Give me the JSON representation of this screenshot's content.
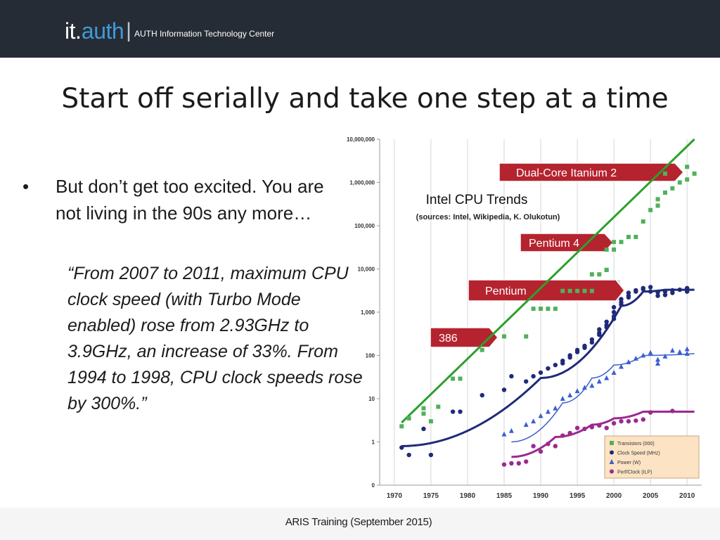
{
  "header": {
    "brand_it": "it",
    "brand_dot": ".",
    "brand_auth": "auth",
    "separator": "|",
    "subtitle": "AUTH Information Technology Center"
  },
  "slide": {
    "title": "Start off serially and take one step at a time",
    "bullet_symbol": "•",
    "bullet_text": "But don’t get too excited. You are not living in the 90s any more…",
    "quote": "“From 2007 to 2011, maximum CPU clock speed (with Turbo Mode enabled) rose from 2.93GHz to 3.9GHz, an increase of 33%. From 1994 to 1998, CPU clock speeds rose by 300%.”"
  },
  "footer": {
    "text": "ARIS Training (September 2015)"
  },
  "colors": {
    "header_bg": "#262c35",
    "brand_accent": "#3f9ad8",
    "transistors": "#52b05a",
    "trend_green": "#2ca02c",
    "clock": "#1f2a7a",
    "power": "#3a5fcf",
    "perf": "#9b2a8f",
    "callout_red": "#b5232f",
    "callout_band": "#d7d9e6",
    "legend_bg": "#fbe3c4"
  },
  "chart_data": {
    "type": "scatter",
    "title": "Intel CPU Trends",
    "subtitle": "(sources: Intel, Wikipedia, K. Olukotun)",
    "scale_y": "log",
    "xlim": [
      1968,
      2012
    ],
    "ylim": [
      0,
      10000000
    ],
    "x_ticks": [
      "1970",
      "1975",
      "1980",
      "1985",
      "1990",
      "1995",
      "2000",
      "2005",
      "2010"
    ],
    "y_ticks": [
      "0",
      "1",
      "10",
      "100",
      "1,000",
      "10,000",
      "100,000",
      "1,000,000",
      "10,000,000"
    ],
    "grid_x": true,
    "grid_y": false,
    "legend_position": "bottom-right",
    "legend": [
      "Transistors (000)",
      "Clock Speed (MHz)",
      "Power (W)",
      "Perf/Clock (ILP)"
    ],
    "callouts": [
      {
        "label": "Dual-Core Itanium 2",
        "x": 2006,
        "y": 1600000
      },
      {
        "label": "Pentium 4",
        "x": 2000,
        "y": 42000
      },
      {
        "label": "Pentium",
        "x": 1993,
        "y": 3100
      },
      {
        "label": "386",
        "x": 1985,
        "y": 275
      }
    ],
    "series": [
      {
        "name": "Transistors (000)",
        "marker": "square",
        "points": [
          [
            1971,
            2.3
          ],
          [
            1972,
            3.5
          ],
          [
            1974,
            4.5
          ],
          [
            1974,
            6
          ],
          [
            1975,
            3
          ],
          [
            1976,
            6.5
          ],
          [
            1978,
            29
          ],
          [
            1979,
            29
          ],
          [
            1982,
            134
          ],
          [
            1985,
            275
          ],
          [
            1988,
            275
          ],
          [
            1989,
            1200
          ],
          [
            1990,
            1200
          ],
          [
            1991,
            1200
          ],
          [
            1992,
            1200
          ],
          [
            1993,
            3100
          ],
          [
            1994,
            3100
          ],
          [
            1995,
            3100
          ],
          [
            1996,
            3100
          ],
          [
            1997,
            3100
          ],
          [
            1997,
            7500
          ],
          [
            1998,
            7500
          ],
          [
            1999,
            9500
          ],
          [
            1999,
            9500
          ],
          [
            1999,
            28000
          ],
          [
            2000,
            28000
          ],
          [
            2000,
            42000
          ],
          [
            2001,
            42000
          ],
          [
            2002,
            55000
          ],
          [
            2003,
            55000
          ],
          [
            2004,
            125000
          ],
          [
            2005,
            230000
          ],
          [
            2006,
            291000
          ],
          [
            2006,
            410000
          ],
          [
            2007,
            582000
          ],
          [
            2008,
            731000
          ],
          [
            2009,
            1000000
          ],
          [
            2010,
            1170000
          ],
          [
            2010,
            2300000
          ],
          [
            2011,
            1600000
          ],
          [
            2007,
            1600000
          ]
        ]
      },
      {
        "name": "Clock Speed (MHz)",
        "marker": "circle",
        "points": [
          [
            1971,
            0.74
          ],
          [
            1972,
            0.5
          ],
          [
            1974,
            2
          ],
          [
            1975,
            0.5
          ],
          [
            1978,
            5
          ],
          [
            1979,
            5
          ],
          [
            1982,
            12
          ],
          [
            1985,
            16
          ],
          [
            1986,
            33
          ],
          [
            1988,
            25
          ],
          [
            1989,
            33
          ],
          [
            1990,
            40
          ],
          [
            1991,
            50
          ],
          [
            1992,
            60
          ],
          [
            1993,
            66
          ],
          [
            1993,
            75
          ],
          [
            1994,
            100
          ],
          [
            1994,
            90
          ],
          [
            1995,
            120
          ],
          [
            1995,
            133
          ],
          [
            1996,
            150
          ],
          [
            1996,
            166
          ],
          [
            1997,
            200
          ],
          [
            1997,
            233
          ],
          [
            1998,
            300
          ],
          [
            1998,
            333
          ],
          [
            1998,
            400
          ],
          [
            1999,
            450
          ],
          [
            1999,
            500
          ],
          [
            1999,
            600
          ],
          [
            2000,
            700
          ],
          [
            2000,
            800
          ],
          [
            2000,
            1000
          ],
          [
            2000,
            1300
          ],
          [
            2001,
            1500
          ],
          [
            2001,
            1700
          ],
          [
            2001,
            2000
          ],
          [
            2002,
            2200
          ],
          [
            2002,
            2400
          ],
          [
            2002,
            2800
          ],
          [
            2003,
            3000
          ],
          [
            2003,
            3200
          ],
          [
            2004,
            3400
          ],
          [
            2004,
            3600
          ],
          [
            2005,
            3800
          ],
          [
            2005,
            3000
          ],
          [
            2006,
            2900
          ],
          [
            2006,
            2400
          ],
          [
            2007,
            3000
          ],
          [
            2007,
            2500
          ],
          [
            2008,
            3200
          ],
          [
            2008,
            2800
          ],
          [
            2009,
            3300
          ],
          [
            2010,
            3000
          ],
          [
            2010,
            3600
          ]
        ]
      },
      {
        "name": "Power (W)",
        "marker": "triangle",
        "points": [
          [
            1985,
            1.5
          ],
          [
            1986,
            1.8
          ],
          [
            1988,
            2.5
          ],
          [
            1989,
            3
          ],
          [
            1990,
            4
          ],
          [
            1991,
            5
          ],
          [
            1992,
            6
          ],
          [
            1993,
            10
          ],
          [
            1994,
            12
          ],
          [
            1995,
            15
          ],
          [
            1996,
            18
          ],
          [
            1997,
            20
          ],
          [
            1998,
            25
          ],
          [
            1999,
            30
          ],
          [
            2000,
            40
          ],
          [
            2001,
            55
          ],
          [
            2002,
            70
          ],
          [
            2003,
            85
          ],
          [
            2004,
            100
          ],
          [
            2005,
            115
          ],
          [
            2006,
            80
          ],
          [
            2006,
            65
          ],
          [
            2007,
            95
          ],
          [
            2008,
            130
          ],
          [
            2009,
            120
          ],
          [
            2010,
            140
          ],
          [
            2010,
            110
          ]
        ]
      },
      {
        "name": "Perf/Clock (ILP)",
        "marker": "circle",
        "points": [
          [
            1985,
            0.3
          ],
          [
            1986,
            0.32
          ],
          [
            1987,
            0.32
          ],
          [
            1988,
            0.35
          ],
          [
            1989,
            0.8
          ],
          [
            1990,
            0.6
          ],
          [
            1991,
            0.9
          ],
          [
            1992,
            0.8
          ],
          [
            1993,
            1.4
          ],
          [
            1994,
            1.6
          ],
          [
            1995,
            2.1
          ],
          [
            1996,
            2
          ],
          [
            1997,
            2.2
          ],
          [
            1998,
            2.4
          ],
          [
            1999,
            2.1
          ],
          [
            2000,
            2.7
          ],
          [
            2001,
            3
          ],
          [
            2002,
            3
          ],
          [
            2003,
            3.1
          ],
          [
            2004,
            3.3
          ],
          [
            2005,
            4.8
          ],
          [
            2008,
            5.2
          ]
        ]
      }
    ],
    "trend_lines": [
      {
        "name": "Transistors (000)",
        "points": [
          [
            1971,
            2.8
          ],
          [
            1982,
            100
          ],
          [
            2000,
            120000
          ],
          [
            2011,
            10000000
          ]
        ]
      },
      {
        "name": "Clock Speed (MHz)",
        "points": [
          [
            1971,
            0.8
          ],
          [
            1990,
            30
          ],
          [
            2001,
            1400
          ],
          [
            2004,
            3000
          ],
          [
            2007,
            3300
          ],
          [
            2011,
            3300
          ]
        ]
      },
      {
        "name": "Power (W)",
        "points": [
          [
            1986,
            1
          ],
          [
            1993,
            8
          ],
          [
            1997,
            30
          ],
          [
            2000,
            60
          ],
          [
            2004,
            100
          ],
          [
            2011,
            110
          ]
        ]
      },
      {
        "name": "Perf/Clock (ILP)",
        "points": [
          [
            1986,
            0.45
          ],
          [
            1992,
            1.3
          ],
          [
            1997,
            2.5
          ],
          [
            2000,
            3.5
          ],
          [
            2004,
            5
          ],
          [
            2011,
            5
          ]
        ]
      }
    ]
  }
}
